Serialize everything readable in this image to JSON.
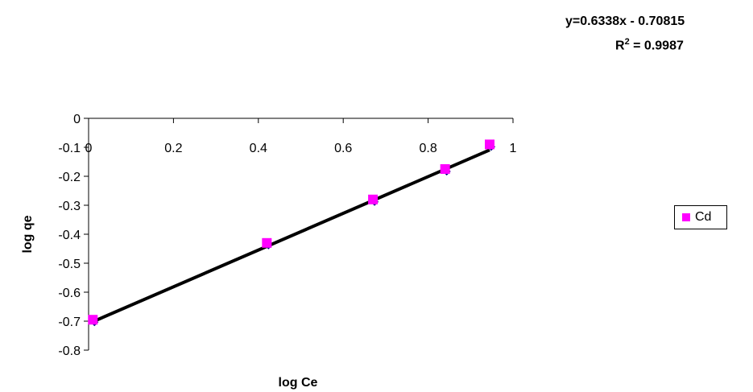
{
  "equation": {
    "line1": "y=0.6338x - 0.70815",
    "r2_prefix": "R",
    "r2_sup": "2",
    "r2_suffix": " = 0.9987"
  },
  "chart_data": {
    "type": "scatter",
    "xlabel": "log Ce",
    "ylabel": "log qe",
    "xlim": [
      0,
      1
    ],
    "ylim": [
      -0.8,
      0
    ],
    "x_ticks": [
      "0",
      "0.2",
      "0.4",
      "0.6",
      "0.8",
      "1"
    ],
    "x_tick_values": [
      0,
      0.2,
      0.4,
      0.6,
      0.8,
      1
    ],
    "y_ticks": [
      "0",
      "-0.1",
      "-0.2",
      "-0.3",
      "-0.4",
      "-0.5",
      "-0.6",
      "-0.7",
      "-0.8"
    ],
    "y_tick_values": [
      0,
      -0.1,
      -0.2,
      -0.3,
      -0.4,
      -0.5,
      -0.6,
      -0.7,
      -0.8
    ],
    "series": [
      {
        "name": "Cd",
        "color": "#ff00ff",
        "marker": "square",
        "x": [
          0.01,
          0.42,
          0.67,
          0.84,
          0.945
        ],
        "y": [
          -0.695,
          -0.43,
          -0.28,
          -0.175,
          -0.09
        ]
      }
    ],
    "hidden_series_color": "#000080",
    "trendline": {
      "slope": 0.6338,
      "intercept": -0.70815,
      "x_range": [
        0.01,
        0.945
      ],
      "color": "#000000"
    },
    "legend": {
      "position": "right",
      "label": "Cd"
    }
  }
}
